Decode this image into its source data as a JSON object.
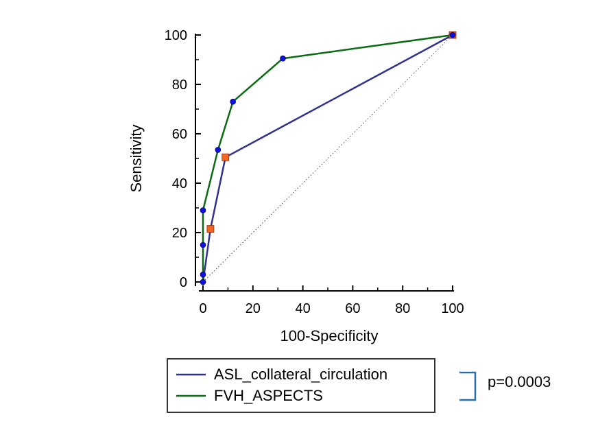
{
  "chart_data": {
    "type": "line",
    "title": "",
    "xlabel": "100-Specificity",
    "ylabel": "Sensitivity",
    "xlim": [
      0,
      100
    ],
    "ylim": [
      0,
      100
    ],
    "x_ticks": [
      0,
      20,
      40,
      60,
      80,
      100
    ],
    "y_ticks": [
      0,
      20,
      40,
      60,
      80,
      100
    ],
    "x_tick_labels": [
      "0",
      "20",
      "40",
      "60",
      "80",
      "100"
    ],
    "y_tick_labels": [
      "0",
      "20",
      "40",
      "60",
      "80",
      "100"
    ],
    "reference_line": {
      "from": [
        0,
        0
      ],
      "to": [
        100,
        100
      ],
      "style": "dotted",
      "color": "#444444"
    },
    "series": [
      {
        "name": "ASL_collateral_circulation",
        "color": "#2e3192",
        "points": [
          {
            "x": 0,
            "y": 0,
            "marker": "circle"
          },
          {
            "x": 3,
            "y": 21.5,
            "marker": "square"
          },
          {
            "x": 9,
            "y": 50.5,
            "marker": "square"
          },
          {
            "x": 100,
            "y": 100,
            "marker": "square"
          }
        ]
      },
      {
        "name": "FVH_ASPECTS",
        "color": "#0b6b12",
        "points": [
          {
            "x": 0,
            "y": 0,
            "marker": "circle"
          },
          {
            "x": 0,
            "y": 3,
            "marker": "circle"
          },
          {
            "x": 0,
            "y": 15,
            "marker": "circle"
          },
          {
            "x": 0,
            "y": 29,
            "marker": "circle"
          },
          {
            "x": 6,
            "y": 53.5,
            "marker": "circle"
          },
          {
            "x": 12,
            "y": 73,
            "marker": "circle"
          },
          {
            "x": 32,
            "y": 90.5,
            "marker": "circle"
          },
          {
            "x": 100,
            "y": 100,
            "marker": "circle"
          }
        ]
      }
    ],
    "marker_colors": {
      "circle": "#1010e0",
      "square": "#f26522"
    },
    "legend": {
      "placement": "bottom",
      "entries": [
        "ASL_collateral_circulation",
        "FVH_ASPECTS"
      ]
    },
    "annotation": {
      "text": "p=0.0003",
      "bracket_color": "#2a6fa8"
    }
  }
}
